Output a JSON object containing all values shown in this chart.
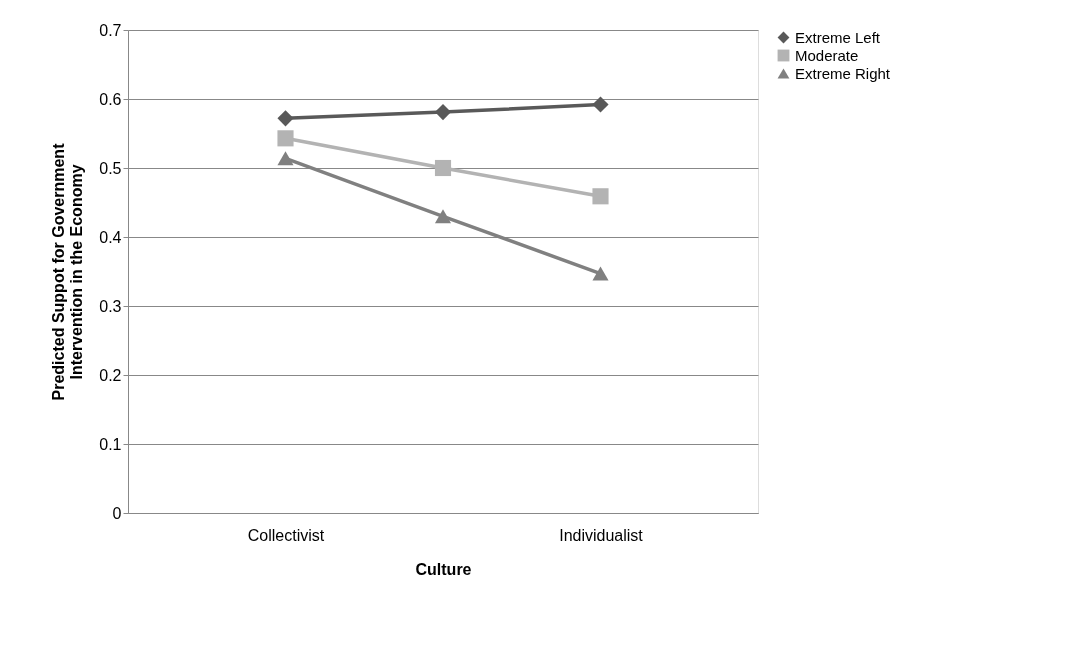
{
  "chart_data": {
    "type": "line",
    "xlabel": "Culture",
    "ylabel": "Predicted Suppot for Government Intervention in the Economy",
    "categories": [
      "Collectivist",
      null,
      "Individualist"
    ],
    "series": [
      {
        "name": "Extreme Left",
        "color": "#595959",
        "marker": "diamond",
        "values": [
          0.572,
          0.581,
          0.592
        ]
      },
      {
        "name": "Moderate",
        "color": "#b3b3b3",
        "marker": "square",
        "values": [
          0.543,
          0.5,
          0.459
        ]
      },
      {
        "name": "Extreme Right",
        "color": "#808080",
        "marker": "triangle",
        "values": [
          0.514,
          0.43,
          0.347
        ]
      }
    ],
    "ylim": [
      0,
      0.7
    ],
    "yticks": [
      0,
      0.1,
      0.2,
      0.3,
      0.4,
      0.5,
      0.6,
      0.7
    ],
    "grid": "y",
    "legend": "right",
    "line_style": "solid"
  }
}
